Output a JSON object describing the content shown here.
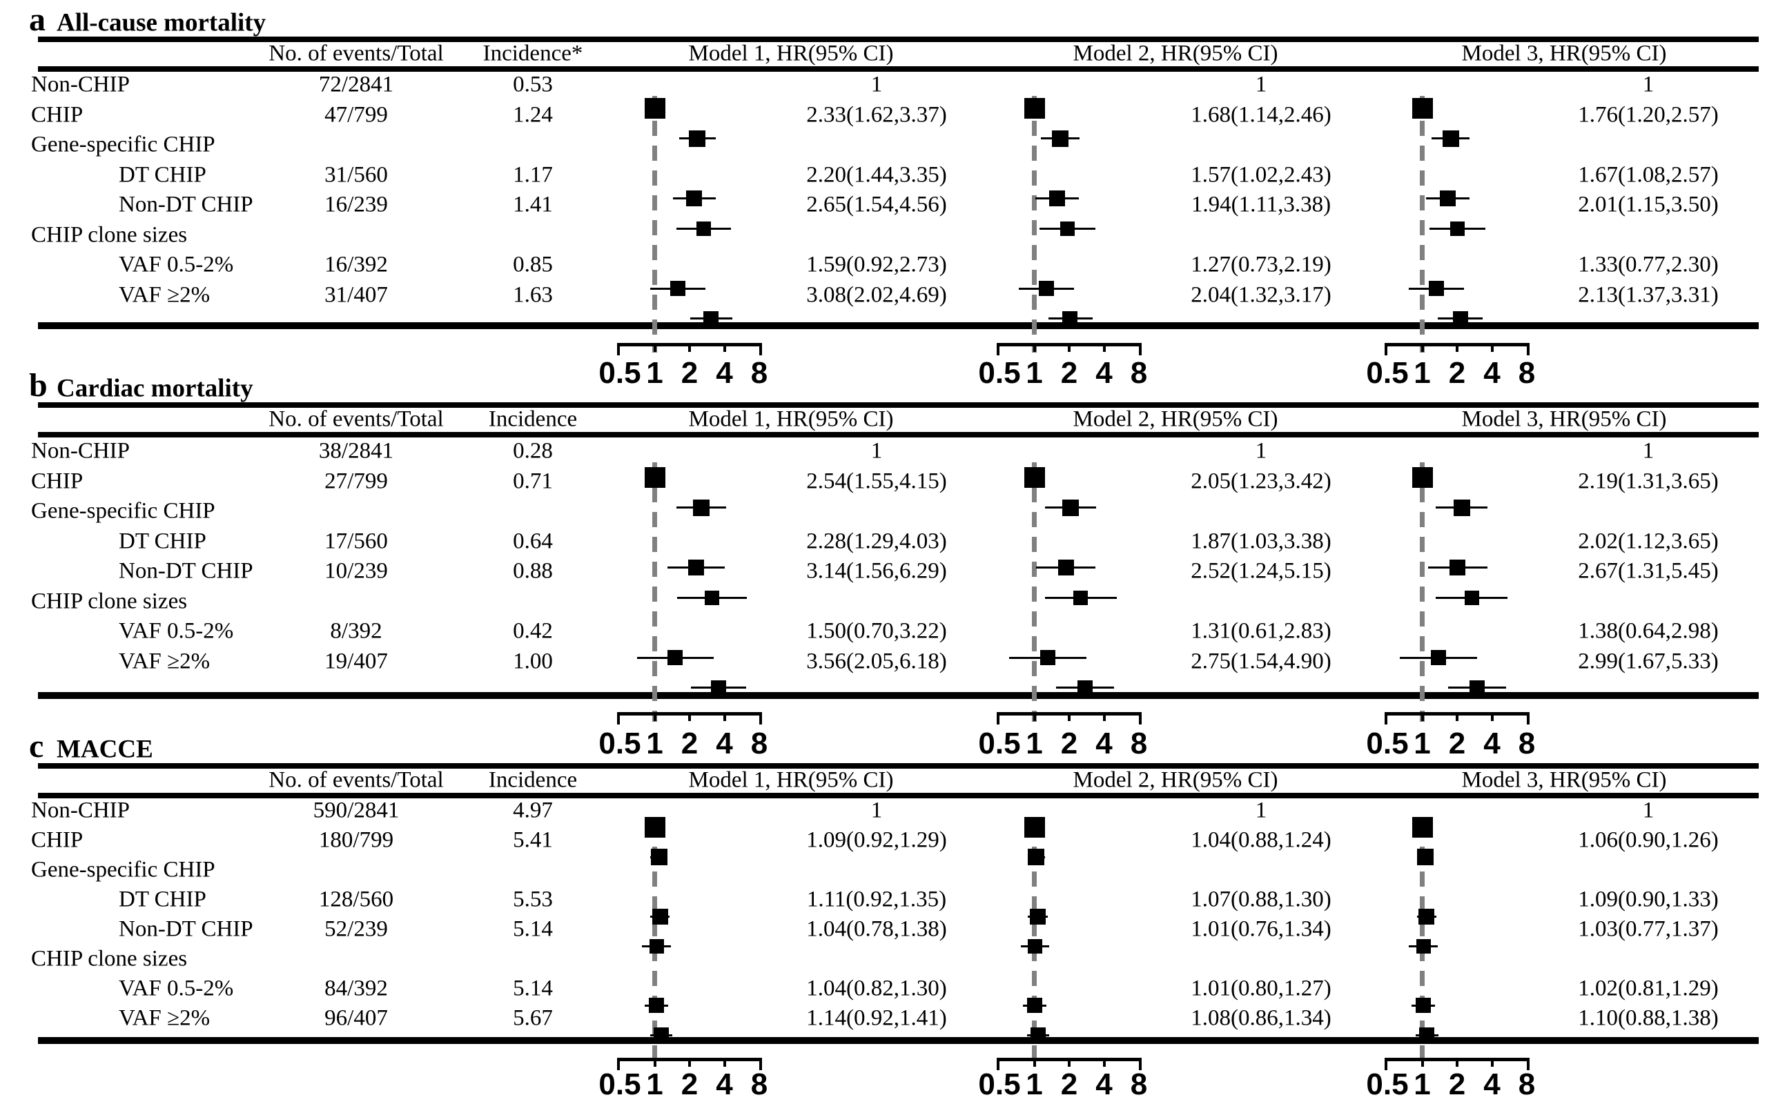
{
  "colors": {
    "background": "#ffffff",
    "text": "#000000",
    "rule": "#000000",
    "marker": "#000000",
    "dashed_reference": "#808080"
  },
  "chart_data": {
    "type": "forest",
    "x_scale": "log2",
    "axis_ticks": [
      0.5,
      1,
      2,
      4,
      8
    ],
    "reference_line": 1,
    "legend_position": "none",
    "grid": false,
    "column_headers": {
      "events": "No. of events/Total",
      "models": [
        "Model 1, HR(95% CI)",
        "Model 2, HR(95% CI)",
        "Model 3, HR(95% CI)"
      ]
    },
    "panels": [
      {
        "letter": "a",
        "title": "All-cause mortality",
        "incidence_header": "Incidence*",
        "rows": [
          {
            "label": "Non-CHIP",
            "indent": false,
            "events": "72/2841",
            "incidence": "0.53",
            "models": [
              {
                "text": "1",
                "hr": 1,
                "ref": true
              },
              {
                "text": "1",
                "hr": 1,
                "ref": true
              },
              {
                "text": "1",
                "hr": 1,
                "ref": true
              }
            ]
          },
          {
            "label": "CHIP",
            "indent": false,
            "events": "47/799",
            "incidence": "1.24",
            "models": [
              {
                "text": "2.33(1.62,3.37)",
                "hr": 2.33,
                "lo": 1.62,
                "hi": 3.37
              },
              {
                "text": "1.68(1.14,2.46)",
                "hr": 1.68,
                "lo": 1.14,
                "hi": 2.46
              },
              {
                "text": "1.76(1.20,2.57)",
                "hr": 1.76,
                "lo": 1.2,
                "hi": 2.57
              }
            ]
          },
          {
            "label": "Gene-specific CHIP",
            "indent": false,
            "events": "",
            "incidence": "",
            "models": [
              null,
              null,
              null
            ]
          },
          {
            "label": "DT CHIP",
            "indent": true,
            "events": "31/560",
            "incidence": "1.17",
            "models": [
              {
                "text": "2.20(1.44,3.35)",
                "hr": 2.2,
                "lo": 1.44,
                "hi": 3.35
              },
              {
                "text": "1.57(1.02,2.43)",
                "hr": 1.57,
                "lo": 1.02,
                "hi": 2.43
              },
              {
                "text": "1.67(1.08,2.57)",
                "hr": 1.67,
                "lo": 1.08,
                "hi": 2.57
              }
            ]
          },
          {
            "label": "Non-DT CHIP",
            "indent": true,
            "events": "16/239",
            "incidence": "1.41",
            "models": [
              {
                "text": "2.65(1.54,4.56)",
                "hr": 2.65,
                "lo": 1.54,
                "hi": 4.56
              },
              {
                "text": "1.94(1.11,3.38)",
                "hr": 1.94,
                "lo": 1.11,
                "hi": 3.38
              },
              {
                "text": "2.01(1.15,3.50)",
                "hr": 2.01,
                "lo": 1.15,
                "hi": 3.5
              }
            ]
          },
          {
            "label": "CHIP clone sizes",
            "indent": false,
            "events": "",
            "incidence": "",
            "models": [
              null,
              null,
              null
            ]
          },
          {
            "label": "VAF 0.5-2%",
            "indent": true,
            "events": "16/392",
            "incidence": "0.85",
            "models": [
              {
                "text": "1.59(0.92,2.73)",
                "hr": 1.59,
                "lo": 0.92,
                "hi": 2.73
              },
              {
                "text": "1.27(0.73,2.19)",
                "hr": 1.27,
                "lo": 0.73,
                "hi": 2.19
              },
              {
                "text": "1.33(0.77,2.30)",
                "hr": 1.33,
                "lo": 0.77,
                "hi": 2.3
              }
            ]
          },
          {
            "label": "VAF ≥2%",
            "indent": true,
            "events": "31/407",
            "incidence": "1.63",
            "models": [
              {
                "text": "3.08(2.02,4.69)",
                "hr": 3.08,
                "lo": 2.02,
                "hi": 4.69
              },
              {
                "text": "2.04(1.32,3.17)",
                "hr": 2.04,
                "lo": 1.32,
                "hi": 3.17
              },
              {
                "text": "2.13(1.37,3.31)",
                "hr": 2.13,
                "lo": 1.37,
                "hi": 3.31
              }
            ]
          }
        ]
      },
      {
        "letter": "b",
        "title": "Cardiac mortality",
        "incidence_header": "Incidence",
        "rows": [
          {
            "label": "Non-CHIP",
            "indent": false,
            "events": "38/2841",
            "incidence": "0.28",
            "models": [
              {
                "text": "1",
                "hr": 1,
                "ref": true
              },
              {
                "text": "1",
                "hr": 1,
                "ref": true
              },
              {
                "text": "1",
                "hr": 1,
                "ref": true
              }
            ]
          },
          {
            "label": "CHIP",
            "indent": false,
            "events": "27/799",
            "incidence": "0.71",
            "models": [
              {
                "text": "2.54(1.55,4.15)",
                "hr": 2.54,
                "lo": 1.55,
                "hi": 4.15
              },
              {
                "text": "2.05(1.23,3.42)",
                "hr": 2.05,
                "lo": 1.23,
                "hi": 3.42
              },
              {
                "text": "2.19(1.31,3.65)",
                "hr": 2.19,
                "lo": 1.31,
                "hi": 3.65
              }
            ]
          },
          {
            "label": "Gene-specific CHIP",
            "indent": false,
            "events": "",
            "incidence": "",
            "models": [
              null,
              null,
              null
            ]
          },
          {
            "label": "DT CHIP",
            "indent": true,
            "events": "17/560",
            "incidence": "0.64",
            "models": [
              {
                "text": "2.28(1.29,4.03)",
                "hr": 2.28,
                "lo": 1.29,
                "hi": 4.03
              },
              {
                "text": "1.87(1.03,3.38)",
                "hr": 1.87,
                "lo": 1.03,
                "hi": 3.38
              },
              {
                "text": "2.02(1.12,3.65)",
                "hr": 2.02,
                "lo": 1.12,
                "hi": 3.65
              }
            ]
          },
          {
            "label": "Non-DT CHIP",
            "indent": true,
            "events": "10/239",
            "incidence": "0.88",
            "models": [
              {
                "text": "3.14(1.56,6.29)",
                "hr": 3.14,
                "lo": 1.56,
                "hi": 6.29
              },
              {
                "text": "2.52(1.24,5.15)",
                "hr": 2.52,
                "lo": 1.24,
                "hi": 5.15
              },
              {
                "text": "2.67(1.31,5.45)",
                "hr": 2.67,
                "lo": 1.31,
                "hi": 5.45
              }
            ]
          },
          {
            "label": "CHIP clone sizes",
            "indent": false,
            "events": "",
            "incidence": "",
            "models": [
              null,
              null,
              null
            ]
          },
          {
            "label": "VAF 0.5-2%",
            "indent": true,
            "events": "8/392",
            "incidence": "0.42",
            "models": [
              {
                "text": "1.50(0.70,3.22)",
                "hr": 1.5,
                "lo": 0.7,
                "hi": 3.22
              },
              {
                "text": "1.31(0.61,2.83)",
                "hr": 1.31,
                "lo": 0.61,
                "hi": 2.83
              },
              {
                "text": "1.38(0.64,2.98)",
                "hr": 1.38,
                "lo": 0.64,
                "hi": 2.98
              }
            ]
          },
          {
            "label": "VAF ≥2%",
            "indent": true,
            "events": "19/407",
            "incidence": "1.00",
            "models": [
              {
                "text": "3.56(2.05,6.18)",
                "hr": 3.56,
                "lo": 2.05,
                "hi": 6.18
              },
              {
                "text": "2.75(1.54,4.90)",
                "hr": 2.75,
                "lo": 1.54,
                "hi": 4.9
              },
              {
                "text": "2.99(1.67,5.33)",
                "hr": 2.99,
                "lo": 1.67,
                "hi": 5.33
              }
            ]
          }
        ]
      },
      {
        "letter": "c",
        "title": "MACCE",
        "incidence_header": "Incidence",
        "rows": [
          {
            "label": "Non-CHIP",
            "indent": false,
            "events": "590/2841",
            "incidence": "4.97",
            "models": [
              {
                "text": "1",
                "hr": 1,
                "ref": true
              },
              {
                "text": "1",
                "hr": 1,
                "ref": true
              },
              {
                "text": "1",
                "hr": 1,
                "ref": true
              }
            ]
          },
          {
            "label": "CHIP",
            "indent": false,
            "events": "180/799",
            "incidence": "5.41",
            "models": [
              {
                "text": "1.09(0.92,1.29)",
                "hr": 1.09,
                "lo": 0.92,
                "hi": 1.29
              },
              {
                "text": "1.04(0.88,1.24)",
                "hr": 1.04,
                "lo": 0.88,
                "hi": 1.24
              },
              {
                "text": "1.06(0.90,1.26)",
                "hr": 1.06,
                "lo": 0.9,
                "hi": 1.26
              }
            ]
          },
          {
            "label": "Gene-specific CHIP",
            "indent": false,
            "events": "",
            "incidence": "",
            "models": [
              null,
              null,
              null
            ]
          },
          {
            "label": "DT CHIP",
            "indent": true,
            "events": "128/560",
            "incidence": "5.53",
            "models": [
              {
                "text": "1.11(0.92,1.35)",
                "hr": 1.11,
                "lo": 0.92,
                "hi": 1.35
              },
              {
                "text": "1.07(0.88,1.30)",
                "hr": 1.07,
                "lo": 0.88,
                "hi": 1.3
              },
              {
                "text": "1.09(0.90,1.33)",
                "hr": 1.09,
                "lo": 0.9,
                "hi": 1.33
              }
            ]
          },
          {
            "label": "Non-DT CHIP",
            "indent": true,
            "events": "52/239",
            "incidence": "5.14",
            "models": [
              {
                "text": "1.04(0.78,1.38)",
                "hr": 1.04,
                "lo": 0.78,
                "hi": 1.38
              },
              {
                "text": "1.01(0.76,1.34)",
                "hr": 1.01,
                "lo": 0.76,
                "hi": 1.34
              },
              {
                "text": "1.03(0.77,1.37)",
                "hr": 1.03,
                "lo": 0.77,
                "hi": 1.37
              }
            ]
          },
          {
            "label": "CHIP clone sizes",
            "indent": false,
            "events": "",
            "incidence": "",
            "models": [
              null,
              null,
              null
            ]
          },
          {
            "label": "VAF 0.5-2%",
            "indent": true,
            "events": "84/392",
            "incidence": "5.14",
            "models": [
              {
                "text": "1.04(0.82,1.30)",
                "hr": 1.04,
                "lo": 0.82,
                "hi": 1.3
              },
              {
                "text": "1.01(0.80,1.27)",
                "hr": 1.01,
                "lo": 0.8,
                "hi": 1.27
              },
              {
                "text": "1.02(0.81,1.29)",
                "hr": 1.02,
                "lo": 0.81,
                "hi": 1.29
              }
            ]
          },
          {
            "label": "VAF ≥2%",
            "indent": true,
            "events": "96/407",
            "incidence": "5.67",
            "models": [
              {
                "text": "1.14(0.92,1.41)",
                "hr": 1.14,
                "lo": 0.92,
                "hi": 1.41
              },
              {
                "text": "1.08(0.86,1.34)",
                "hr": 1.08,
                "lo": 0.86,
                "hi": 1.34
              },
              {
                "text": "1.10(0.88,1.38)",
                "hr": 1.1,
                "lo": 0.88,
                "hi": 1.38
              }
            ]
          }
        ]
      }
    ]
  }
}
